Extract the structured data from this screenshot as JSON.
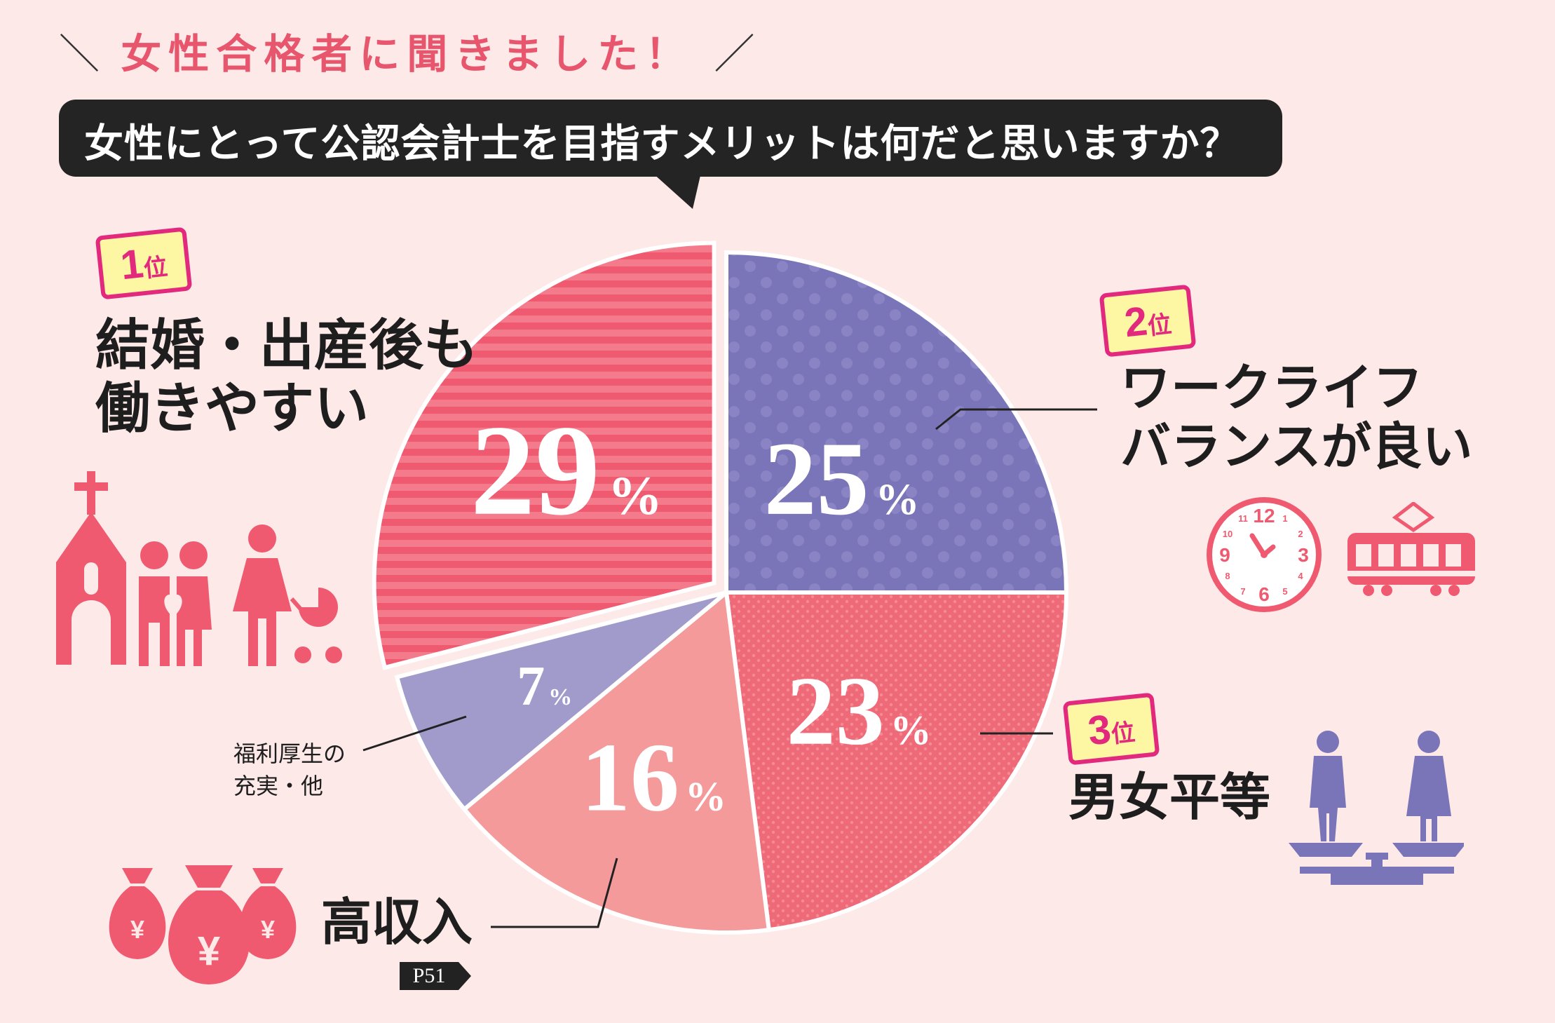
{
  "header": {
    "slash_left": "＼",
    "text": "女性合格者に聞きました！",
    "slash_right": "／"
  },
  "question": "女性にとって公認会計士を目指すメリットは何だと思いますか？",
  "chart_data": {
    "type": "pie",
    "title": "",
    "slices": [
      {
        "label": "ワークライフバランスが良い",
        "value": 25,
        "color": "#7a74b8",
        "pattern": "dots"
      },
      {
        "label": "男女平等",
        "value": 23,
        "color": "#ef6a78",
        "pattern": "fine-dots"
      },
      {
        "label": "高収入",
        "value": 16,
        "color": "#f49a9b",
        "pattern": "none"
      },
      {
        "label": "福利厚生の充実・他",
        "value": 7,
        "color": "#a19bcc",
        "pattern": "none"
      },
      {
        "label": "結婚・出産後も働きやすい",
        "value": 29,
        "color": "#ef5a70",
        "pattern": "stripes"
      }
    ],
    "value_labels": [
      "25",
      "23",
      "16",
      "7",
      "29"
    ],
    "percent_sign": "%"
  },
  "ranks": {
    "first": {
      "num": "1",
      "suffix": "位",
      "label_line1": "結婚・出産後も",
      "label_line2": "働きやすい"
    },
    "second": {
      "num": "2",
      "suffix": "位",
      "label_line1": "ワークライフ",
      "label_line2": "バランスが良い"
    },
    "third": {
      "num": "3",
      "suffix": "位",
      "label": "男女平等"
    }
  },
  "other_labels": {
    "high_income": "高収入",
    "welfare_line1": "福利厚生の",
    "welfare_line2": "充実・他"
  },
  "icons": {
    "clock_numbers": [
      "12",
      "1",
      "2",
      "3",
      "4",
      "5",
      "6",
      "7",
      "8",
      "9",
      "10",
      "11"
    ],
    "yen": "¥"
  },
  "page_ref": "P51",
  "colors": {
    "background": "#fde9e8",
    "accent_pink": "#e8566d",
    "purple": "#7a74b8",
    "rank_border": "#e2297e",
    "rank_fill": "#fdf6a2"
  }
}
